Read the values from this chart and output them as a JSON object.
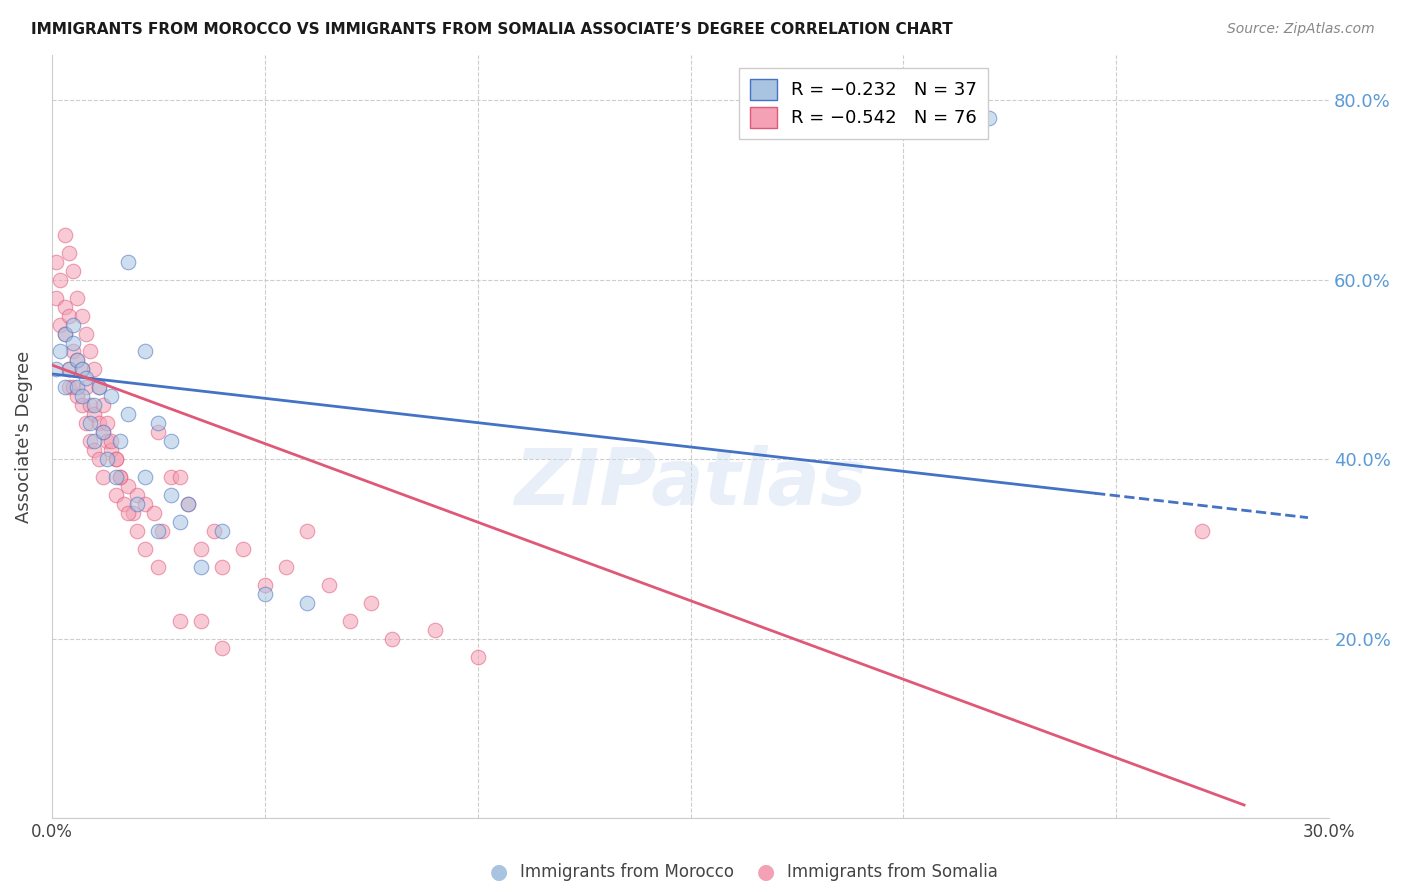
{
  "title": "IMMIGRANTS FROM MOROCCO VS IMMIGRANTS FROM SOMALIA ASSOCIATE’S DEGREE CORRELATION CHART",
  "source": "Source: ZipAtlas.com",
  "ylabel": "Associate's Degree",
  "background_color": "#ffffff",
  "grid_color": "#c8c8c8",
  "xlim": [
    0.0,
    0.3
  ],
  "ylim": [
    0.0,
    0.85
  ],
  "ytick_labels": [
    "",
    "20.0%",
    "40.0%",
    "60.0%",
    "80.0%"
  ],
  "ytick_values": [
    0.0,
    0.2,
    0.4,
    0.6,
    0.8
  ],
  "xtick_labels": [
    "0.0%",
    "",
    "",
    "",
    "",
    "",
    "30.0%"
  ],
  "xtick_values": [
    0.0,
    0.05,
    0.1,
    0.15,
    0.2,
    0.25,
    0.3
  ],
  "right_ytick_color": "#5b9bd5",
  "morocco_color": "#a8c4e0",
  "somalia_color": "#f4a0b5",
  "morocco_line_color": "#4472c4",
  "somalia_line_color": "#e05878",
  "legend_r_morocco": "R = −0.232",
  "legend_n_morocco": "N = 37",
  "legend_r_somalia": "R = −0.542",
  "legend_n_somalia": "N = 76",
  "watermark": "ZIPatlas",
  "morocco_x": [
    0.001,
    0.002,
    0.003,
    0.003,
    0.004,
    0.005,
    0.005,
    0.006,
    0.006,
    0.007,
    0.007,
    0.008,
    0.009,
    0.01,
    0.01,
    0.011,
    0.012,
    0.013,
    0.014,
    0.015,
    0.016,
    0.018,
    0.02,
    0.022,
    0.025,
    0.028,
    0.03,
    0.035,
    0.04,
    0.05,
    0.06,
    0.018,
    0.022,
    0.025,
    0.028,
    0.032,
    0.22
  ],
  "morocco_y": [
    0.5,
    0.52,
    0.48,
    0.54,
    0.5,
    0.53,
    0.55,
    0.48,
    0.51,
    0.5,
    0.47,
    0.49,
    0.44,
    0.46,
    0.42,
    0.48,
    0.43,
    0.4,
    0.47,
    0.38,
    0.42,
    0.45,
    0.35,
    0.38,
    0.32,
    0.36,
    0.33,
    0.28,
    0.32,
    0.25,
    0.24,
    0.62,
    0.52,
    0.44,
    0.42,
    0.35,
    0.78
  ],
  "somalia_x": [
    0.001,
    0.001,
    0.002,
    0.002,
    0.003,
    0.003,
    0.004,
    0.004,
    0.004,
    0.005,
    0.005,
    0.006,
    0.006,
    0.007,
    0.007,
    0.008,
    0.008,
    0.009,
    0.009,
    0.01,
    0.01,
    0.011,
    0.011,
    0.012,
    0.012,
    0.013,
    0.014,
    0.015,
    0.015,
    0.016,
    0.017,
    0.018,
    0.019,
    0.02,
    0.022,
    0.024,
    0.025,
    0.026,
    0.028,
    0.03,
    0.032,
    0.035,
    0.038,
    0.04,
    0.045,
    0.05,
    0.055,
    0.06,
    0.065,
    0.07,
    0.075,
    0.08,
    0.09,
    0.1,
    0.003,
    0.004,
    0.005,
    0.006,
    0.007,
    0.008,
    0.009,
    0.01,
    0.011,
    0.012,
    0.013,
    0.014,
    0.015,
    0.016,
    0.018,
    0.02,
    0.022,
    0.025,
    0.03,
    0.035,
    0.04,
    0.27
  ],
  "somalia_y": [
    0.62,
    0.58,
    0.6,
    0.55,
    0.57,
    0.54,
    0.56,
    0.5,
    0.48,
    0.52,
    0.48,
    0.51,
    0.47,
    0.5,
    0.46,
    0.48,
    0.44,
    0.46,
    0.42,
    0.45,
    0.41,
    0.44,
    0.4,
    0.43,
    0.38,
    0.42,
    0.41,
    0.4,
    0.36,
    0.38,
    0.35,
    0.37,
    0.34,
    0.36,
    0.35,
    0.34,
    0.43,
    0.32,
    0.38,
    0.38,
    0.35,
    0.3,
    0.32,
    0.28,
    0.3,
    0.26,
    0.28,
    0.32,
    0.26,
    0.22,
    0.24,
    0.2,
    0.21,
    0.18,
    0.65,
    0.63,
    0.61,
    0.58,
    0.56,
    0.54,
    0.52,
    0.5,
    0.48,
    0.46,
    0.44,
    0.42,
    0.4,
    0.38,
    0.34,
    0.32,
    0.3,
    0.28,
    0.22,
    0.22,
    0.19,
    0.32
  ],
  "morocco_trend_x": [
    0.0,
    0.295
  ],
  "morocco_trend_y": [
    0.495,
    0.335
  ],
  "morocco_trend_solid_end": 0.245,
  "somalia_trend_x": [
    0.0,
    0.28
  ],
  "somalia_trend_y": [
    0.505,
    0.015
  ]
}
